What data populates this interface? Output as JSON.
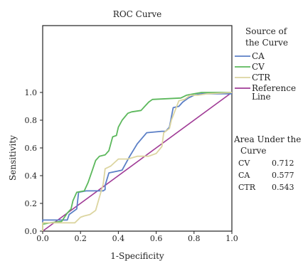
{
  "chart_data": {
    "type": "line",
    "title": "ROC Curve",
    "xlabel": "1-Specificity",
    "ylabel": "Sensitivity",
    "xlim": [
      0.0,
      1.0
    ],
    "ylim": [
      0.0,
      1.0
    ],
    "x_ticks": [
      0.0,
      0.2,
      0.4,
      0.6,
      0.8,
      1.0
    ],
    "y_ticks": [
      0.0,
      0.2,
      0.4,
      0.6,
      0.8,
      1.0
    ],
    "x_tick_labels": [
      "0.0",
      "0.2",
      "0.4",
      "0.6",
      "0.8",
      "1.0"
    ],
    "y_tick_labels": [
      "0.0",
      "0.2",
      "0.4",
      "0.6",
      "0.8",
      "1.0"
    ],
    "legend_title": [
      "Source of",
      "the Curve"
    ],
    "legend_position": "top-right, outside plot",
    "grid": false,
    "series": [
      {
        "name": "CA",
        "color": "#5b7fc6",
        "points": [
          [
            0,
            0
          ],
          [
            0,
            0.08
          ],
          [
            0.13,
            0.08
          ],
          [
            0.14,
            0.12
          ],
          [
            0.18,
            0.16
          ],
          [
            0.19,
            0.28
          ],
          [
            0.23,
            0.29
          ],
          [
            0.32,
            0.29
          ],
          [
            0.33,
            0.3
          ],
          [
            0.33,
            0.33
          ],
          [
            0.35,
            0.42
          ],
          [
            0.42,
            0.44
          ],
          [
            0.46,
            0.54
          ],
          [
            0.5,
            0.63
          ],
          [
            0.55,
            0.71
          ],
          [
            0.63,
            0.72
          ],
          [
            0.65,
            0.72
          ],
          [
            0.67,
            0.75
          ],
          [
            0.69,
            0.89
          ],
          [
            0.72,
            0.9
          ],
          [
            0.74,
            0.93
          ],
          [
            0.77,
            0.96
          ],
          [
            0.8,
            0.98
          ],
          [
            0.84,
            0.99
          ],
          [
            1.0,
            0.99
          ]
        ]
      },
      {
        "name": "CV",
        "color": "#5cb85c",
        "points": [
          [
            0,
            0
          ],
          [
            0,
            0.05
          ],
          [
            0.04,
            0.06
          ],
          [
            0.1,
            0.07
          ],
          [
            0.13,
            0.13
          ],
          [
            0.15,
            0.16
          ],
          [
            0.16,
            0.22
          ],
          [
            0.18,
            0.28
          ],
          [
            0.22,
            0.29
          ],
          [
            0.24,
            0.35
          ],
          [
            0.26,
            0.43
          ],
          [
            0.28,
            0.51
          ],
          [
            0.3,
            0.54
          ],
          [
            0.33,
            0.55
          ],
          [
            0.35,
            0.58
          ],
          [
            0.37,
            0.68
          ],
          [
            0.39,
            0.69
          ],
          [
            0.4,
            0.75
          ],
          [
            0.42,
            0.8
          ],
          [
            0.45,
            0.85
          ],
          [
            0.47,
            0.86
          ],
          [
            0.52,
            0.87
          ],
          [
            0.54,
            0.9
          ],
          [
            0.56,
            0.93
          ],
          [
            0.58,
            0.95
          ],
          [
            0.73,
            0.96
          ],
          [
            0.76,
            0.98
          ],
          [
            0.8,
            0.99
          ],
          [
            0.84,
            1.0
          ],
          [
            1.0,
            1.0
          ]
        ]
      },
      {
        "name": "CTR",
        "color": "#dcd5a0",
        "points": [
          [
            0,
            0
          ],
          [
            0,
            0.06
          ],
          [
            0.17,
            0.06
          ],
          [
            0.2,
            0.1
          ],
          [
            0.22,
            0.11
          ],
          [
            0.25,
            0.12
          ],
          [
            0.28,
            0.15
          ],
          [
            0.32,
            0.34
          ],
          [
            0.33,
            0.45
          ],
          [
            0.36,
            0.47
          ],
          [
            0.4,
            0.52
          ],
          [
            0.45,
            0.52
          ],
          [
            0.5,
            0.54
          ],
          [
            0.56,
            0.54
          ],
          [
            0.6,
            0.56
          ],
          [
            0.63,
            0.61
          ],
          [
            0.64,
            0.71
          ],
          [
            0.67,
            0.74
          ],
          [
            0.68,
            0.8
          ],
          [
            0.72,
            0.94
          ],
          [
            0.75,
            0.95
          ],
          [
            0.78,
            0.98
          ],
          [
            0.82,
            0.98
          ],
          [
            0.87,
            0.99
          ],
          [
            1.0,
            1.0
          ]
        ]
      },
      {
        "name": "Reference Line",
        "color": "#a03b96",
        "points": [
          [
            0,
            0
          ],
          [
            1,
            1
          ]
        ]
      }
    ],
    "legend_labels": [
      {
        "lines": [
          "CA"
        ],
        "color": "#5b7fc6"
      },
      {
        "lines": [
          "CV"
        ],
        "color": "#5cb85c"
      },
      {
        "lines": [
          "CTR"
        ],
        "color": "#dcd5a0"
      },
      {
        "lines": [
          "Reference",
          "Line"
        ],
        "color": "#a03b96"
      }
    ],
    "annotation": {
      "title": [
        "Area Under the",
        "Curve"
      ],
      "rows": [
        {
          "label": "CV",
          "value": "0.712"
        },
        {
          "label": "CA",
          "value": "0.577"
        },
        {
          "label": "CTR",
          "value": "0.543"
        }
      ]
    }
  }
}
